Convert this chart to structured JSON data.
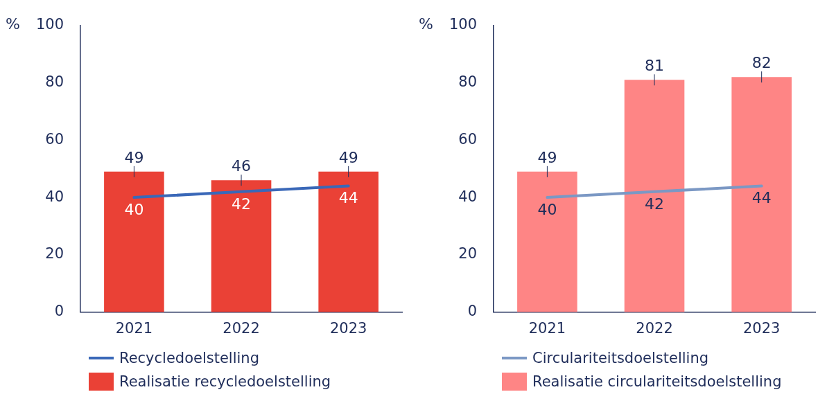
{
  "chart_data": [
    {
      "type": "bar",
      "ylabel": "%",
      "categories": [
        "2021",
        "2022",
        "2023"
      ],
      "ylim": [
        0,
        100
      ],
      "yticks": [
        0,
        20,
        40,
        60,
        80,
        100
      ],
      "grid": false,
      "legend": "bottom",
      "data_labels": true,
      "series": [
        {
          "type": "line",
          "name": "Recycledoelstelling",
          "color": "#3a68b8",
          "values": [
            40,
            42,
            44
          ]
        },
        {
          "name": "Realisatie recycledoelstelling",
          "color": "#ea4136",
          "values": [
            49,
            46,
            49
          ]
        }
      ]
    },
    {
      "type": "bar",
      "ylabel": "%",
      "categories": [
        "2021",
        "2022",
        "2023"
      ],
      "ylim": [
        0,
        100
      ],
      "yticks": [
        0,
        20,
        40,
        60,
        80,
        100
      ],
      "grid": false,
      "legend": "bottom",
      "data_labels": true,
      "series": [
        {
          "type": "line",
          "name": "Circulariteitsdoelstelling",
          "color": "#7b98c4",
          "values": [
            40,
            42,
            44
          ]
        },
        {
          "name": "Realisatie circulariteitsdoelstelling",
          "color": "#fe8585",
          "values": [
            49,
            81,
            82
          ]
        }
      ]
    }
  ]
}
